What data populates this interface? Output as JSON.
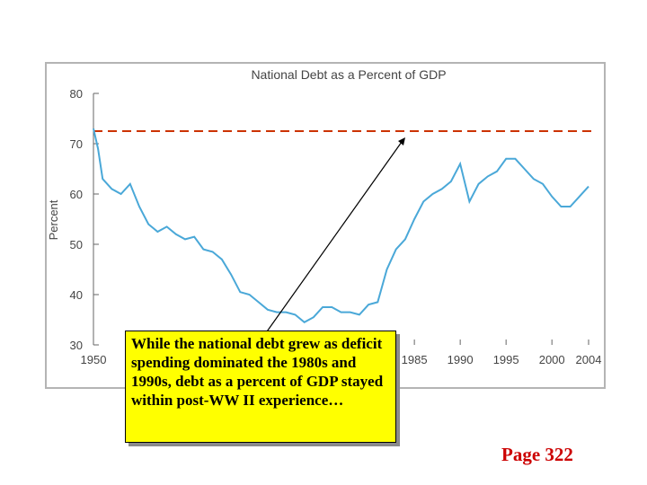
{
  "callout": {
    "text": "While the national debt grew as deficit spending dominated the 1980s and 1990s, debt as a percent of GDP stayed within post-WW II experience…"
  },
  "page_label": "Page 322",
  "colors": {
    "line": "#4aa8d8",
    "reference_line": "#cc3300",
    "callout_fill": "#ffff00",
    "page_label": "#cc0000"
  },
  "chart_data": {
    "type": "line",
    "title": "National Debt as a Percent of GDP",
    "ylabel": "Percent",
    "xlabel": "",
    "xlim": [
      1950,
      2004
    ],
    "ylim": [
      30,
      80
    ],
    "x_ticks": [
      1950,
      1985,
      1990,
      1995,
      2000,
      2004
    ],
    "y_ticks": [
      30,
      40,
      50,
      60,
      70,
      80
    ],
    "grid": false,
    "reference_line_y": 72.5,
    "series": [
      {
        "x": [
          1950,
          1950.5,
          1951,
          1952,
          1953,
          1954,
          1955,
          1956,
          1957,
          1958,
          1959,
          1960,
          1961,
          1962,
          1963,
          1964,
          1965,
          1966,
          1967,
          1968,
          1969,
          1970,
          1971,
          1972,
          1973,
          1974,
          1975,
          1976,
          1977,
          1978,
          1979,
          1980,
          1981,
          1982,
          1983,
          1984,
          1985,
          1986,
          1987,
          1988,
          1989,
          1990,
          1991,
          1992,
          1993,
          1994,
          1995,
          1996,
          1997,
          1998,
          1999,
          2000,
          2001,
          2002,
          2003,
          2004
        ],
        "values": [
          73,
          69,
          63,
          61,
          60,
          62,
          57.5,
          54,
          52.5,
          53.5,
          52,
          51,
          51.5,
          49,
          48.5,
          47,
          44,
          40.5,
          40,
          38.5,
          37,
          36.5,
          36.5,
          36,
          34.5,
          35.5,
          37.5,
          37.5,
          36.5,
          36.5,
          36,
          38,
          38.5,
          45,
          49,
          51,
          55,
          58.5,
          60,
          61,
          62.5,
          66,
          58.5,
          62,
          63.5,
          64.5,
          67,
          67,
          65,
          63,
          62,
          59.5,
          57.5,
          57.5,
          59.5,
          61.5
        ]
      }
    ]
  }
}
